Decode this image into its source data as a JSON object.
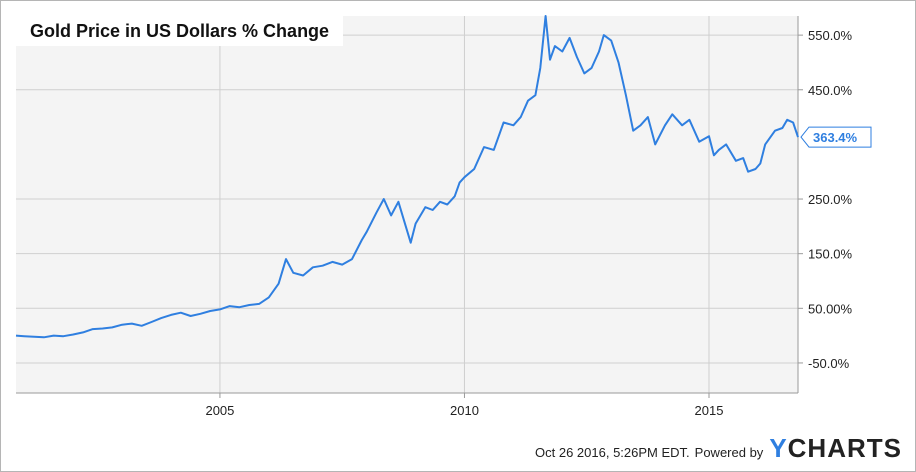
{
  "title": "Gold Price in US Dollars % Change",
  "footer": {
    "timestamp": "Oct 26 2016, 5:26PM EDT.",
    "powered_by": "Powered by",
    "logo_y": "Y",
    "logo_rest": "CHARTS"
  },
  "colors": {
    "line": "#2f7fe0",
    "grid": "#cfcfcf",
    "plot_bg": "#f4f4f4"
  },
  "chart_data": {
    "type": "line",
    "title": "Gold Price in US Dollars % Change",
    "xlim": [
      2000.83,
      2016.82
    ],
    "ylim": [
      -105,
      585
    ],
    "x_ticks": [
      {
        "value": 2005,
        "label": "2005"
      },
      {
        "value": 2010,
        "label": "2010"
      },
      {
        "value": 2015,
        "label": "2015"
      }
    ],
    "y_ticks": [
      {
        "value": 550,
        "label": "550.0%"
      },
      {
        "value": 450,
        "label": "450.0%"
      },
      {
        "value": 250,
        "label": "250.0%"
      },
      {
        "value": 150,
        "label": "150.0%"
      },
      {
        "value": 50,
        "label": "50.00%"
      },
      {
        "value": -50,
        "label": "-50.0%"
      }
    ],
    "last_value": {
      "value": 363.4,
      "label": "363.4%"
    },
    "grid": true,
    "series": [
      {
        "points": [
          [
            2000.83,
            0
          ],
          [
            2001.0,
            -1
          ],
          [
            2001.2,
            -2
          ],
          [
            2001.4,
            -3
          ],
          [
            2001.6,
            0
          ],
          [
            2001.8,
            -1
          ],
          [
            2002.0,
            2
          ],
          [
            2002.2,
            6
          ],
          [
            2002.4,
            12
          ],
          [
            2002.6,
            13
          ],
          [
            2002.8,
            15
          ],
          [
            2003.0,
            20
          ],
          [
            2003.2,
            22
          ],
          [
            2003.4,
            18
          ],
          [
            2003.6,
            25
          ],
          [
            2003.8,
            32
          ],
          [
            2004.0,
            38
          ],
          [
            2004.2,
            42
          ],
          [
            2004.4,
            36
          ],
          [
            2004.6,
            40
          ],
          [
            2004.8,
            45
          ],
          [
            2005.0,
            48
          ],
          [
            2005.2,
            54
          ],
          [
            2005.4,
            52
          ],
          [
            2005.6,
            56
          ],
          [
            2005.8,
            58
          ],
          [
            2006.0,
            70
          ],
          [
            2006.2,
            95
          ],
          [
            2006.35,
            140
          ],
          [
            2006.5,
            115
          ],
          [
            2006.7,
            110
          ],
          [
            2006.9,
            125
          ],
          [
            2007.1,
            128
          ],
          [
            2007.3,
            135
          ],
          [
            2007.5,
            130
          ],
          [
            2007.7,
            140
          ],
          [
            2007.9,
            175
          ],
          [
            2008.0,
            190
          ],
          [
            2008.2,
            225
          ],
          [
            2008.35,
            250
          ],
          [
            2008.5,
            220
          ],
          [
            2008.65,
            245
          ],
          [
            2008.8,
            200
          ],
          [
            2008.9,
            170
          ],
          [
            2009.0,
            205
          ],
          [
            2009.2,
            235
          ],
          [
            2009.35,
            230
          ],
          [
            2009.5,
            245
          ],
          [
            2009.65,
            240
          ],
          [
            2009.8,
            255
          ],
          [
            2009.9,
            280
          ],
          [
            2010.0,
            290
          ],
          [
            2010.2,
            305
          ],
          [
            2010.4,
            345
          ],
          [
            2010.6,
            340
          ],
          [
            2010.8,
            390
          ],
          [
            2011.0,
            385
          ],
          [
            2011.15,
            400
          ],
          [
            2011.3,
            430
          ],
          [
            2011.45,
            440
          ],
          [
            2011.55,
            490
          ],
          [
            2011.66,
            585
          ],
          [
            2011.75,
            505
          ],
          [
            2011.85,
            530
          ],
          [
            2012.0,
            520
          ],
          [
            2012.15,
            545
          ],
          [
            2012.3,
            510
          ],
          [
            2012.45,
            480
          ],
          [
            2012.6,
            490
          ],
          [
            2012.75,
            520
          ],
          [
            2012.85,
            550
          ],
          [
            2013.0,
            540
          ],
          [
            2013.15,
            500
          ],
          [
            2013.3,
            440
          ],
          [
            2013.45,
            375
          ],
          [
            2013.6,
            385
          ],
          [
            2013.75,
            400
          ],
          [
            2013.9,
            350
          ],
          [
            2014.1,
            385
          ],
          [
            2014.25,
            405
          ],
          [
            2014.45,
            385
          ],
          [
            2014.6,
            395
          ],
          [
            2014.8,
            355
          ],
          [
            2015.0,
            365
          ],
          [
            2015.1,
            330
          ],
          [
            2015.2,
            340
          ],
          [
            2015.35,
            350
          ],
          [
            2015.55,
            320
          ],
          [
            2015.7,
            325
          ],
          [
            2015.8,
            300
          ],
          [
            2015.95,
            305
          ],
          [
            2016.05,
            315
          ],
          [
            2016.15,
            350
          ],
          [
            2016.35,
            375
          ],
          [
            2016.5,
            380
          ],
          [
            2016.6,
            395
          ],
          [
            2016.72,
            390
          ],
          [
            2016.82,
            363.4
          ]
        ]
      }
    ]
  }
}
